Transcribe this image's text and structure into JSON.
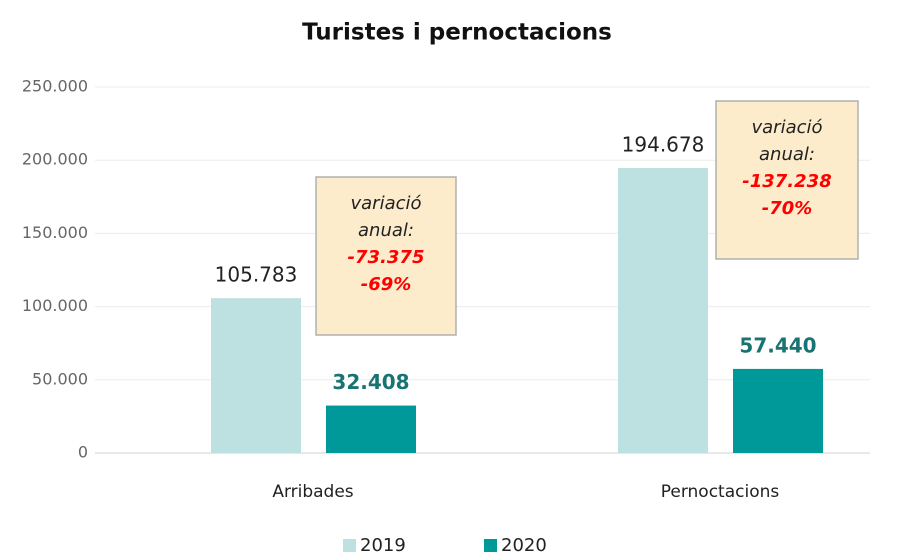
{
  "chart_data": {
    "type": "bar",
    "title": "Turistes i pernoctacions",
    "categories": [
      "Arribades",
      "Pernoctacions"
    ],
    "series": [
      {
        "name": "2019",
        "color": "#bde0e0",
        "values": [
          105783,
          194678
        ],
        "value_labels": [
          "105.783",
          "194.678"
        ]
      },
      {
        "name": "2020",
        "color": "#009999",
        "values": [
          32408,
          57440
        ],
        "value_labels": [
          "32.408",
          "57.440"
        ]
      }
    ],
    "ylim": [
      0,
      250000
    ],
    "yticks": [
      {
        "value": 0,
        "label": "0"
      },
      {
        "value": 50000,
        "label": "50.000"
      },
      {
        "value": 100000,
        "label": "100.000"
      },
      {
        "value": 150000,
        "label": "150.000"
      },
      {
        "value": 200000,
        "label": "200.000"
      },
      {
        "value": 250000,
        "label": "250.000"
      }
    ],
    "grid": true,
    "legend": "bottom",
    "annotations": [
      {
        "lines": [
          "variació",
          "anual:"
        ],
        "change": "-73.375",
        "percent": "-69%"
      },
      {
        "lines": [
          "variació",
          "anual:"
        ],
        "change": "-137.238",
        "percent": "-70%"
      }
    ]
  }
}
